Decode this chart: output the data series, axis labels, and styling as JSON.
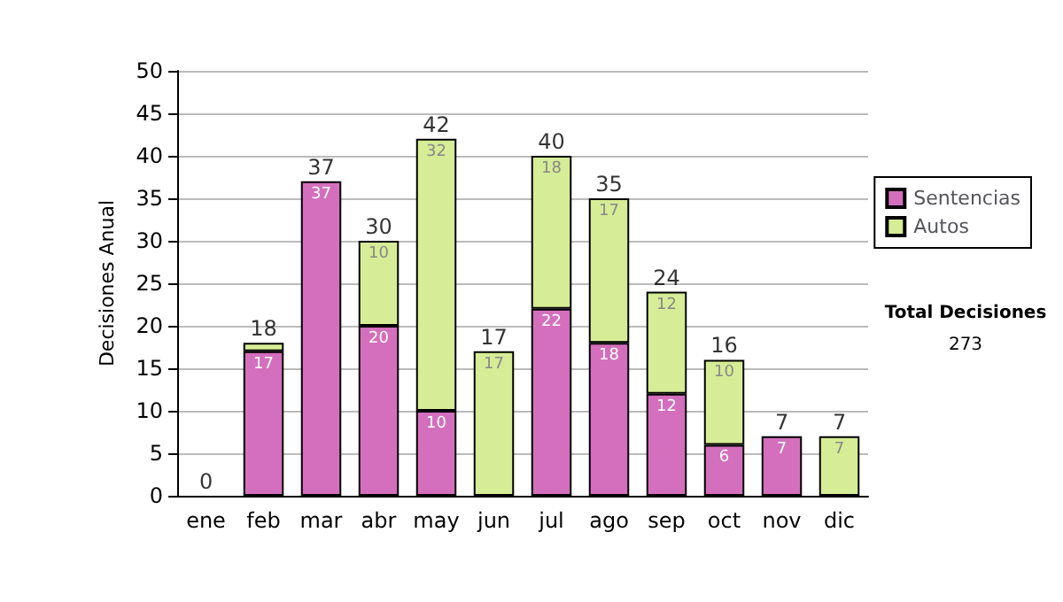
{
  "chart_data": {
    "type": "bar",
    "stacked": true,
    "ylabel": "Decisiones Anual",
    "categories": [
      "ene",
      "feb",
      "mar",
      "abr",
      "may",
      "jun",
      "jul",
      "ago",
      "sep",
      "oct",
      "nov",
      "dic"
    ],
    "series": [
      {
        "name": "Sentencias",
        "color": "#d36fbd",
        "values": [
          0,
          17,
          37,
          20,
          10,
          0,
          22,
          18,
          12,
          6,
          7,
          0
        ],
        "value_labels": [
          null,
          "17",
          "37",
          "20",
          "10",
          null,
          "22",
          "18",
          "12",
          "6",
          "7",
          null
        ]
      },
      {
        "name": "Autos",
        "color": "#d6ec96",
        "values": [
          0,
          1,
          0,
          10,
          32,
          17,
          18,
          17,
          12,
          10,
          0,
          7
        ],
        "value_labels": [
          null,
          null,
          null,
          "10",
          "32",
          "17",
          "18",
          "17",
          "12",
          "10",
          null,
          "7"
        ]
      }
    ],
    "totals": [
      "0",
      "18",
      "37",
      "30",
      "42",
      "17",
      "40",
      "35",
      "24",
      "16",
      "7",
      "7"
    ],
    "ylim": [
      0,
      50
    ],
    "yticks": [
      0,
      5,
      10,
      15,
      20,
      25,
      30,
      35,
      40,
      45,
      50
    ],
    "grid": "y",
    "legend": "right",
    "annotations": [
      "Total Decisiones",
      "273"
    ]
  }
}
